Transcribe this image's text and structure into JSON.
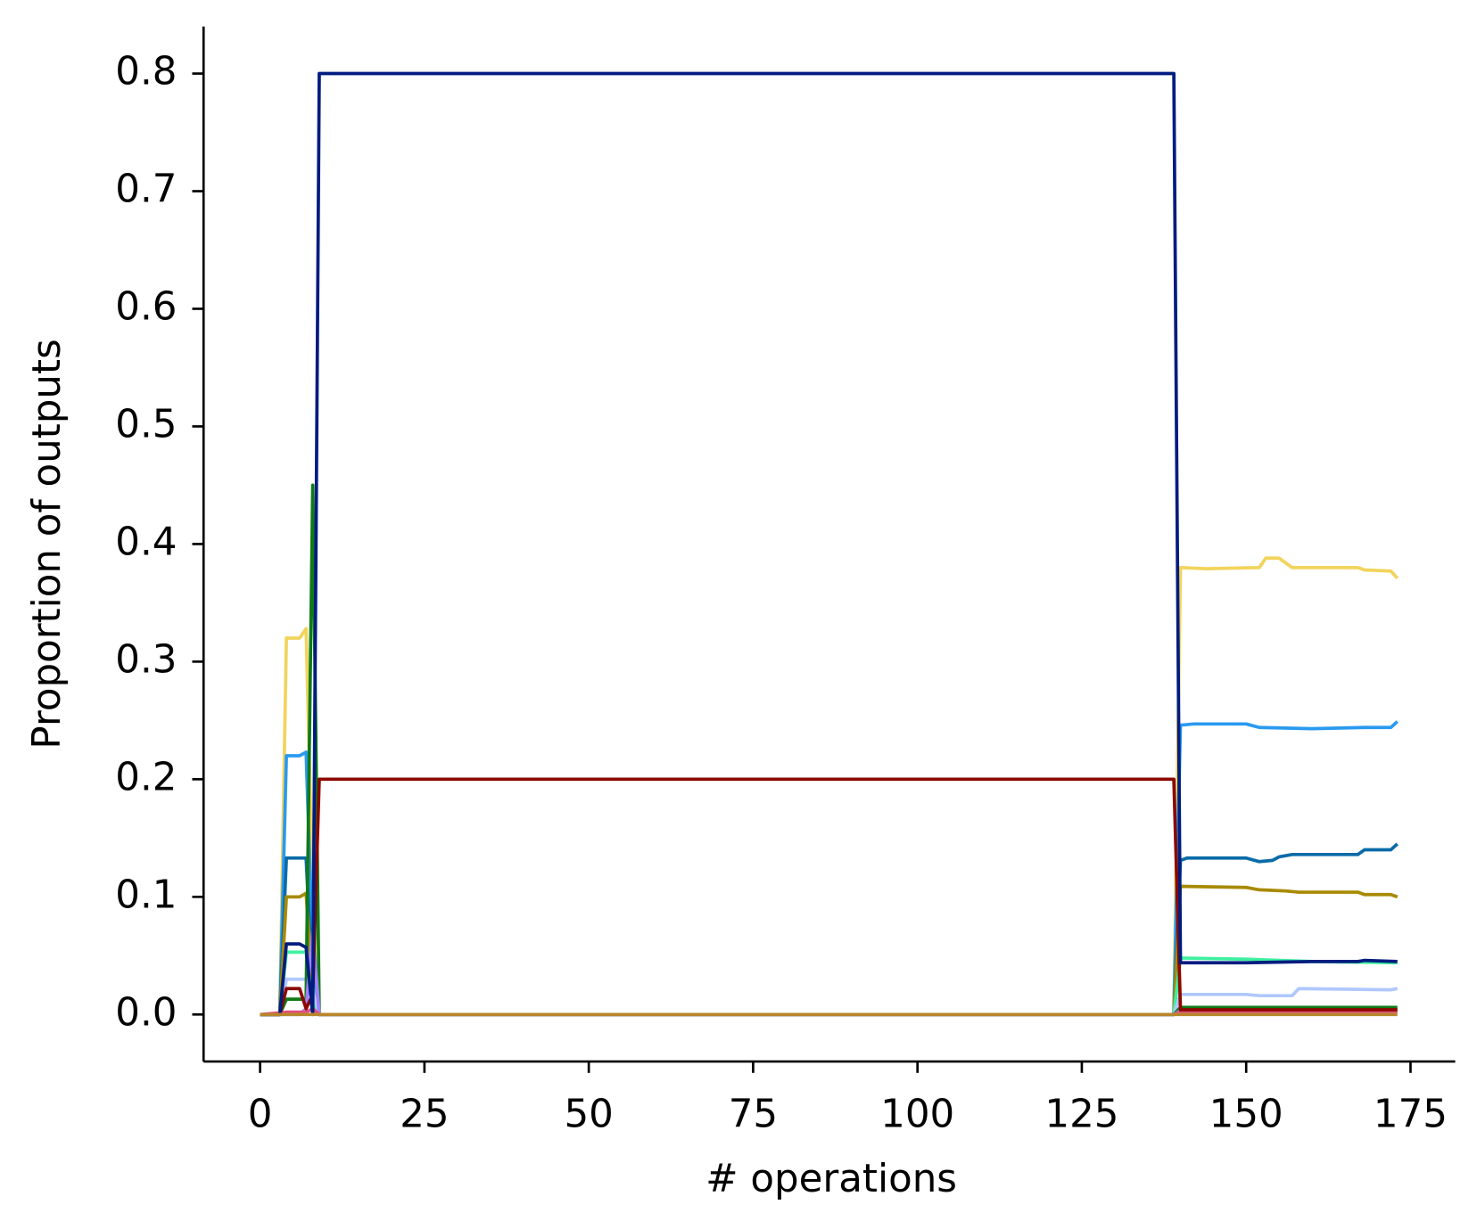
{
  "chart_data": {
    "type": "line",
    "xlabel": "# operations",
    "ylabel": "Proportion of outputs",
    "xlim": [
      -8.6,
      181.8
    ],
    "ylim": [
      -0.04,
      0.84
    ],
    "xticks": [
      0,
      25,
      50,
      75,
      100,
      125,
      150,
      175
    ],
    "yticks": [
      {
        "value": 0,
        "label": "0.0"
      },
      0.1,
      0.2,
      0.3,
      0.4,
      0.5,
      0.6,
      0.7,
      0.8
    ],
    "series": [
      {
        "color": "#f2d45c",
        "x": [
          0,
          3,
          4,
          6,
          7,
          8,
          9,
          139,
          140,
          144,
          152,
          153,
          155,
          157,
          167,
          168,
          172,
          173
        ],
        "values": [
          0,
          0,
          0.32,
          0.32,
          0.328,
          0.1,
          0,
          0,
          0.38,
          0.379,
          0.38,
          0.388,
          0.388,
          0.38,
          0.38,
          0.378,
          0.377,
          0.371
        ]
      },
      {
        "color": "#2a9af0",
        "x": [
          0,
          3,
          4,
          6,
          7,
          8,
          9,
          139,
          140,
          142,
          150,
          152,
          160,
          168,
          172,
          173
        ],
        "values": [
          0,
          0,
          0.22,
          0.22,
          0.223,
          0.05,
          0,
          0,
          0.246,
          0.247,
          0.247,
          0.244,
          0.243,
          0.244,
          0.244,
          0.249
        ]
      },
      {
        "color": "#0b6ba8",
        "x": [
          0,
          3,
          4,
          7,
          8,
          9,
          139,
          140,
          141,
          150,
          152,
          154,
          155,
          157,
          167,
          168,
          172,
          173
        ],
        "values": [
          0,
          0,
          0.133,
          0.133,
          0.02,
          0,
          0,
          0.131,
          0.133,
          0.133,
          0.13,
          0.131,
          0.134,
          0.136,
          0.136,
          0.14,
          0.14,
          0.145
        ]
      },
      {
        "color": "#a88a00",
        "x": [
          0,
          3,
          4,
          6,
          7,
          8,
          9,
          139,
          140,
          150,
          152,
          156,
          158,
          167,
          168,
          172,
          173
        ],
        "values": [
          0,
          0,
          0.1,
          0.1,
          0.103,
          0.02,
          0,
          0,
          0.109,
          0.108,
          0.106,
          0.105,
          0.104,
          0.104,
          0.102,
          0.102,
          0.1
        ]
      },
      {
        "color": "#3ef0a0",
        "x": [
          0,
          3,
          4,
          7,
          8,
          9,
          139,
          140,
          150,
          160,
          173
        ],
        "values": [
          0,
          0,
          0.053,
          0.053,
          0.01,
          0,
          0,
          0.048,
          0.047,
          0.045,
          0.044
        ]
      },
      {
        "color": "#b0c8ff",
        "x": [
          0,
          3,
          4,
          7,
          8,
          9,
          139,
          140,
          150,
          152,
          157,
          158,
          172,
          173
        ],
        "values": [
          0,
          0,
          0.03,
          0.03,
          0.02,
          0,
          0,
          0.017,
          0.017,
          0.016,
          0.016,
          0.022,
          0.021,
          0.022
        ]
      },
      {
        "color": "#107a18",
        "x": [
          0,
          3,
          4,
          7,
          8,
          9,
          139,
          140,
          173
        ],
        "values": [
          0,
          0,
          0.013,
          0.013,
          0.45,
          0,
          0,
          0.006,
          0.006
        ]
      },
      {
        "color": "#a080ff",
        "x": [
          0,
          6,
          7,
          8,
          9,
          139,
          140,
          173
        ],
        "values": [
          0,
          0,
          0.005,
          0.07,
          0,
          0,
          0.003,
          0.003
        ]
      },
      {
        "color": "#e05080",
        "x": [
          0,
          4,
          7,
          8,
          9,
          139,
          140,
          173
        ],
        "values": [
          0,
          0.002,
          0.002,
          0.005,
          0,
          0,
          0.002,
          0.002
        ]
      },
      {
        "color": "#8c0800",
        "x": [
          0,
          3,
          4,
          6,
          7,
          8,
          9,
          139,
          140,
          173
        ],
        "values": [
          0,
          0,
          0.022,
          0.022,
          0.005,
          0.017,
          0.2,
          0.2,
          0.004,
          0.004
        ]
      },
      {
        "color": "#001c7f",
        "x": [
          0,
          3,
          4,
          6,
          7,
          8,
          9,
          139,
          140,
          150,
          160,
          167,
          168,
          173
        ],
        "values": [
          0,
          0,
          0.06,
          0.06,
          0.057,
          0,
          0.8,
          0.8,
          0.044,
          0.044,
          0.045,
          0.045,
          0.046,
          0.045
        ]
      },
      {
        "color": "#b8862b",
        "x": [
          0,
          173
        ],
        "values": [
          0,
          0
        ]
      }
    ]
  }
}
